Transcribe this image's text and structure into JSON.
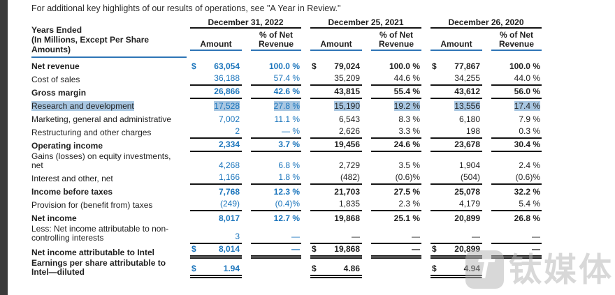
{
  "page": {
    "intro_text": "For additional key highlights of our results of operations, see \"A Year in Review.\""
  },
  "watermark": {
    "logo_char": "T",
    "text": "钛媒体"
  },
  "table": {
    "row_header": "Years Ended\n(In Millions, Except Per Share\nAmounts)",
    "col_groups": [
      "December 31, 2022",
      "December 25, 2021",
      "December 26, 2020"
    ],
    "sub_headers": {
      "amount": "Amount",
      "pct": "% of Net\nRevenue"
    },
    "rows": [
      {
        "label": "Net revenue",
        "bold": true,
        "dollar": true,
        "highlight": false,
        "u": "",
        "values": [
          {
            "amount": "63,054",
            "pct": "100.0 %"
          },
          {
            "amount": "79,024",
            "pct": "100.0 %"
          },
          {
            "amount": "77,867",
            "pct": "100.0 %"
          }
        ]
      },
      {
        "label": "Cost of sales",
        "bold": false,
        "dollar": false,
        "highlight": false,
        "u": "s",
        "values": [
          {
            "amount": "36,188",
            "pct": "57.4 %"
          },
          {
            "amount": "35,209",
            "pct": "44.6 %"
          },
          {
            "amount": "34,255",
            "pct": "44.0 %"
          }
        ]
      },
      {
        "label": "Gross margin",
        "bold": true,
        "dollar": false,
        "highlight": false,
        "u": "s",
        "values": [
          {
            "amount": "26,866",
            "pct": "42.6 %"
          },
          {
            "amount": "43,815",
            "pct": "55.4 %"
          },
          {
            "amount": "43,612",
            "pct": "56.0 %"
          }
        ]
      },
      {
        "label": "Research and development",
        "bold": false,
        "dollar": false,
        "highlight": true,
        "u": "",
        "values": [
          {
            "amount": "17,528",
            "pct": "27.8 %"
          },
          {
            "amount": "15,190",
            "pct": "19.2 %"
          },
          {
            "amount": "13,556",
            "pct": "17.4 %"
          }
        ]
      },
      {
        "label": "Marketing, general and administrative",
        "bold": false,
        "dollar": false,
        "highlight": false,
        "u": "",
        "values": [
          {
            "amount": "7,002",
            "pct": "11.1 %"
          },
          {
            "amount": "6,543",
            "pct": "8.3 %"
          },
          {
            "amount": "6,180",
            "pct": "7.9 %"
          }
        ]
      },
      {
        "label": "Restructuring and other charges",
        "bold": false,
        "dollar": false,
        "highlight": false,
        "u": "s",
        "values": [
          {
            "amount": "2",
            "pct": "— %"
          },
          {
            "amount": "2,626",
            "pct": "3.3 %"
          },
          {
            "amount": "198",
            "pct": "0.3 %"
          }
        ]
      },
      {
        "label": "Operating income",
        "bold": true,
        "dollar": false,
        "highlight": false,
        "u": "s",
        "values": [
          {
            "amount": "2,334",
            "pct": "3.7 %"
          },
          {
            "amount": "19,456",
            "pct": "24.6 %"
          },
          {
            "amount": "23,678",
            "pct": "30.4 %"
          }
        ]
      },
      {
        "label": "Gains (losses) on equity investments, net",
        "bold": false,
        "dollar": false,
        "highlight": false,
        "u": "",
        "values": [
          {
            "amount": "4,268",
            "pct": "6.8 %"
          },
          {
            "amount": "2,729",
            "pct": "3.5 %"
          },
          {
            "amount": "1,904",
            "pct": "2.4 %"
          }
        ]
      },
      {
        "label": "Interest and other, net",
        "bold": false,
        "dollar": false,
        "highlight": false,
        "u": "s",
        "values": [
          {
            "amount": "1,166",
            "pct": "1.8 %"
          },
          {
            "amount": "(482)",
            "pct": "(0.6)%"
          },
          {
            "amount": "(504)",
            "pct": "(0.6)%"
          }
        ]
      },
      {
        "label": "Income before taxes",
        "bold": true,
        "dollar": false,
        "highlight": false,
        "u": "",
        "values": [
          {
            "amount": "7,768",
            "pct": "12.3 %"
          },
          {
            "amount": "21,703",
            "pct": "27.5 %"
          },
          {
            "amount": "25,078",
            "pct": "32.2 %"
          }
        ]
      },
      {
        "label": "Provision for (benefit from) taxes",
        "bold": false,
        "dollar": false,
        "highlight": false,
        "u": "s",
        "values": [
          {
            "amount": "(249)",
            "pct": "(0.4)%"
          },
          {
            "amount": "1,835",
            "pct": "2.3 %"
          },
          {
            "amount": "4,179",
            "pct": "5.4 %"
          }
        ]
      },
      {
        "label": "Net income",
        "bold": true,
        "dollar": false,
        "highlight": false,
        "u": "",
        "values": [
          {
            "amount": "8,017",
            "pct": "12.7 %"
          },
          {
            "amount": "19,868",
            "pct": "25.1 %"
          },
          {
            "amount": "20,899",
            "pct": "26.8 %"
          }
        ]
      },
      {
        "label": "Less: Net income attributable to non-controlling interests",
        "bold": false,
        "dollar": false,
        "highlight": false,
        "u": "s",
        "values": [
          {
            "amount": "3",
            "pct": "—"
          },
          {
            "amount": "—",
            "pct": "—"
          },
          {
            "amount": "—",
            "pct": "—"
          }
        ]
      },
      {
        "label": "Net income attributable to Intel",
        "bold": true,
        "dollar": true,
        "highlight": false,
        "u": "d",
        "values": [
          {
            "amount": "8,014",
            "pct": "—"
          },
          {
            "amount": "19,868",
            "pct": "—"
          },
          {
            "amount": "20,899",
            "pct": "—"
          }
        ]
      },
      {
        "label": "Earnings per share attributable to Intel—diluted",
        "bold": true,
        "dollar": true,
        "highlight": false,
        "u": "d",
        "values": [
          {
            "amount": "1.94",
            "pct": ""
          },
          {
            "amount": "4.86",
            "pct": ""
          },
          {
            "amount": "4.94",
            "pct": ""
          }
        ]
      }
    ]
  }
}
